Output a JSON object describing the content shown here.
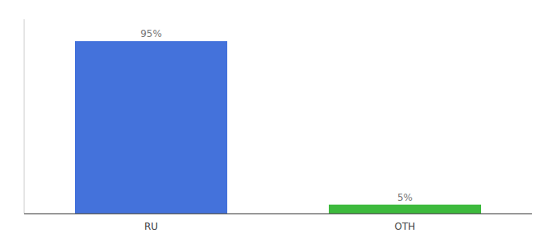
{
  "chart_data": {
    "type": "bar",
    "categories": [
      "RU",
      "OTH"
    ],
    "values": [
      95,
      5
    ],
    "value_labels": [
      "95%",
      "5%"
    ],
    "colors": [
      "#4472db",
      "#3dba3d"
    ],
    "ylim": [
      0,
      107
    ],
    "data_labels": true,
    "tick_labels": "x",
    "grid": false
  }
}
